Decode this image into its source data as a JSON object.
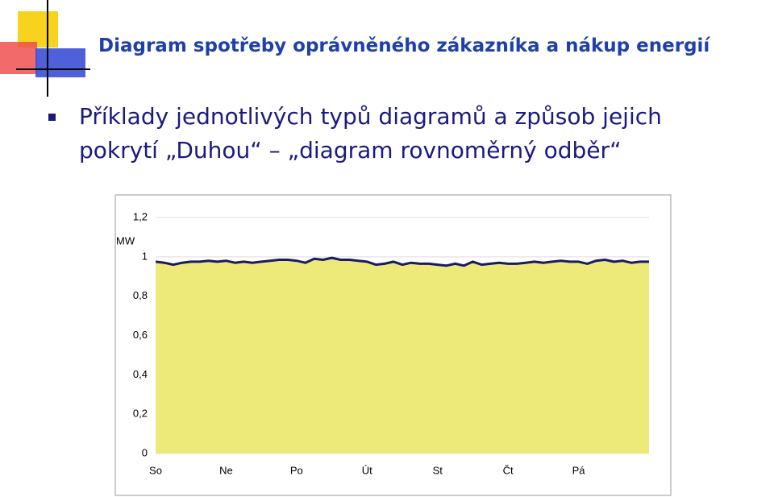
{
  "slide": {
    "title": "Diagram spotřeby oprávněného zákazníka a nákup energií",
    "bullet_lines": [
      "Příklady jednotlivých typů diagramů a způsob jejich",
      "pokrytí „Duhou“ – „diagram rovnoměrný odběr“"
    ]
  },
  "chart_data": {
    "type": "area",
    "ylabel": "MW",
    "color": "#1a1a66",
    "fill_color": "#eeea7a",
    "x": [
      0,
      0.125,
      0.25,
      0.375,
      0.5,
      0.625,
      0.75,
      0.875,
      1,
      1.125,
      1.25,
      1.375,
      1.5,
      1.625,
      1.75,
      1.875,
      2,
      2.125,
      2.25,
      2.375,
      2.5,
      2.625,
      2.75,
      2.875,
      3,
      3.125,
      3.25,
      3.375,
      3.5,
      3.625,
      3.75,
      3.875,
      4,
      4.125,
      4.25,
      4.375,
      4.5,
      4.625,
      4.75,
      4.875,
      5,
      5.125,
      5.25,
      5.375,
      5.5,
      5.625,
      5.75,
      5.875,
      6,
      6.125,
      6.25,
      6.375,
      6.5,
      6.625,
      6.75,
      6.875,
      7
    ],
    "values": [
      0.975,
      0.97,
      0.96,
      0.97,
      0.975,
      0.975,
      0.98,
      0.975,
      0.98,
      0.97,
      0.975,
      0.97,
      0.975,
      0.98,
      0.985,
      0.985,
      0.98,
      0.97,
      0.99,
      0.985,
      0.995,
      0.985,
      0.985,
      0.98,
      0.975,
      0.96,
      0.965,
      0.975,
      0.96,
      0.97,
      0.965,
      0.965,
      0.96,
      0.955,
      0.965,
      0.955,
      0.975,
      0.96,
      0.965,
      0.97,
      0.965,
      0.965,
      0.97,
      0.975,
      0.97,
      0.975,
      0.98,
      0.975,
      0.975,
      0.965,
      0.98,
      0.985,
      0.975,
      0.98,
      0.97,
      0.975,
      0.975
    ],
    "xlim": [
      0,
      7
    ],
    "xticks": [
      {
        "value": 0,
        "label": "So"
      },
      {
        "value": 1,
        "label": "Ne"
      },
      {
        "value": 2,
        "label": "Po"
      },
      {
        "value": 3,
        "label": "Út"
      },
      {
        "value": 4,
        "label": "St"
      },
      {
        "value": 5,
        "label": "Čt"
      },
      {
        "value": 6,
        "label": "Pá"
      }
    ],
    "ylim": [
      0,
      1.2
    ],
    "yticks": [
      0,
      {
        "value": 0.2,
        "label": "0,2"
      },
      {
        "value": 0.4,
        "label": "0,4"
      },
      {
        "value": 0.6,
        "label": "0,6"
      },
      {
        "value": 0.8,
        "label": "0,8"
      },
      1,
      {
        "value": 1.2,
        "label": "1,2"
      }
    ]
  }
}
